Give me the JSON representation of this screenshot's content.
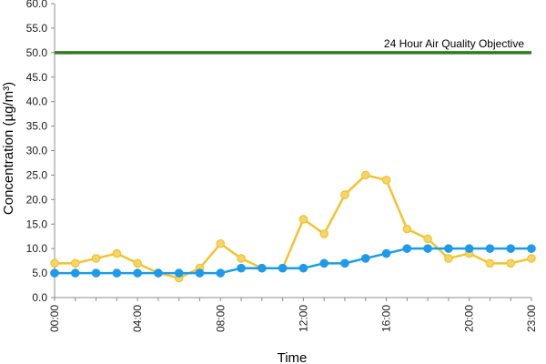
{
  "chart_data": {
    "type": "line",
    "title": "",
    "xlabel": "Time",
    "ylabel": "Concentration (µg/m³)",
    "ylim": [
      0,
      60
    ],
    "yticks": [
      "0.0",
      "5.0",
      "10.0",
      "15.0",
      "20.0",
      "25.0",
      "30.0",
      "35.0",
      "40.0",
      "45.0",
      "50.0",
      "55.0",
      "60.0"
    ],
    "x": [
      "00:00",
      "01:00",
      "02:00",
      "03:00",
      "04:00",
      "05:00",
      "06:00",
      "07:00",
      "08:00",
      "09:00",
      "10:00",
      "11:00",
      "12:00",
      "13:00",
      "14:00",
      "15:00",
      "16:00",
      "17:00",
      "18:00",
      "19:00",
      "20:00",
      "21:00",
      "22:00",
      "23:00"
    ],
    "xtick_labels": [
      "00:00",
      "04:00",
      "08:00",
      "12:00",
      "16:00",
      "20:00",
      "23:00"
    ],
    "grid": false,
    "series": [
      {
        "color": "#f2c32e",
        "marker_fill": "#f5d46a",
        "values": [
          7,
          7,
          8,
          9,
          7,
          5,
          4,
          6,
          11,
          8,
          6,
          6,
          16,
          13,
          21,
          25,
          24,
          14,
          12,
          8,
          9,
          7,
          7,
          8
        ]
      },
      {
        "color": "#1e9be8",
        "marker_fill": "#1e9be8",
        "values": [
          5,
          5,
          5,
          5,
          5,
          5,
          5,
          5,
          5,
          6,
          6,
          6,
          6,
          7,
          7,
          8,
          9,
          10,
          10,
          10,
          10,
          10,
          10,
          10
        ]
      }
    ],
    "reference_lines": [
      {
        "label": "24 Hour Air Quality Objective",
        "value": 50,
        "color": "#2e7d1e"
      }
    ]
  }
}
